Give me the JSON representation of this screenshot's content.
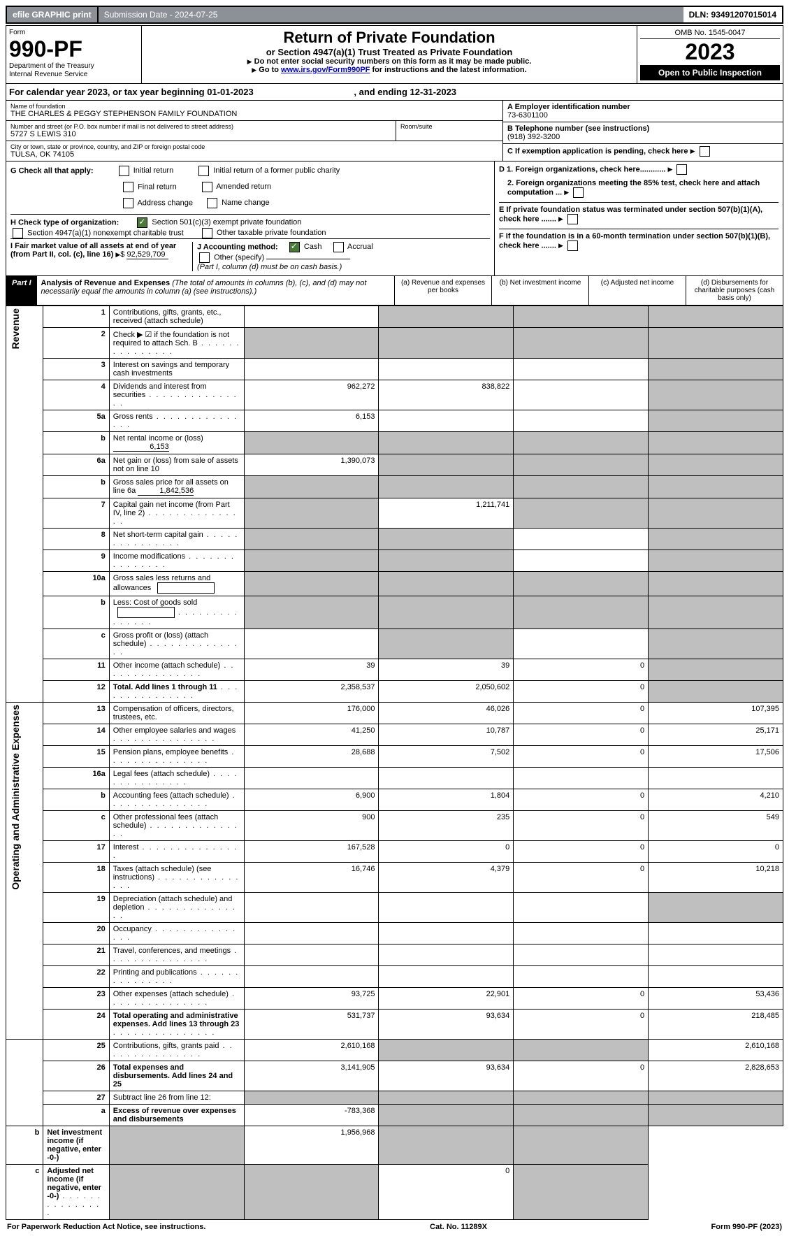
{
  "topbar": {
    "efile": "efile GRAPHIC print",
    "submission_label": "Submission Date - 2024-07-25",
    "dln_label": "DLN: 93491207015014"
  },
  "header": {
    "form_label": "Form",
    "form_number": "990-PF",
    "dept1": "Department of the Treasury",
    "dept2": "Internal Revenue Service",
    "title": "Return of Private Foundation",
    "subtitle": "or Section 4947(a)(1) Trust Treated as Private Foundation",
    "instr1": "Do not enter social security numbers on this form as it may be made public.",
    "instr2_prefix": "Go to ",
    "instr2_link": "www.irs.gov/Form990PF",
    "instr2_suffix": " for instructions and the latest information.",
    "omb": "OMB No. 1545-0047",
    "year": "2023",
    "open_pub": "Open to Public Inspection"
  },
  "cal_year": {
    "prefix": "For calendar year 2023, or tax year beginning ",
    "begin": "01-01-2023",
    "mid": " , and ending ",
    "end": "12-31-2023"
  },
  "foundation": {
    "name_label": "Name of foundation",
    "name": "THE CHARLES & PEGGY STEPHENSON FAMILY FOUNDATION",
    "addr_label": "Number and street (or P.O. box number if mail is not delivered to street address)",
    "addr": "5727 S LEWIS 310",
    "room_label": "Room/suite",
    "city_label": "City or town, state or province, country, and ZIP or foreign postal code",
    "city": "TULSA, OK  74105",
    "ein_label": "A Employer identification number",
    "ein": "73-6301100",
    "phone_label": "B Telephone number (see instructions)",
    "phone": "(918) 392-3200",
    "c_label": "C If exemption application is pending, check here",
    "d1_label": "D 1. Foreign organizations, check here............",
    "d2_label": "2. Foreign organizations meeting the 85% test, check here and attach computation ...",
    "e_label": "E  If private foundation status was terminated under section 507(b)(1)(A), check here .......",
    "f_label": "F  If the foundation is in a 60-month termination under section 507(b)(1)(B), check here ......."
  },
  "g_block": {
    "g_label": "G Check all that apply:",
    "initial_return": "Initial return",
    "final_return": "Final return",
    "address_change": "Address change",
    "initial_former": "Initial return of a former public charity",
    "amended": "Amended return",
    "name_change": "Name change",
    "h_label": "H Check type of organization:",
    "h_501c3": "Section 501(c)(3) exempt private foundation",
    "h_4947": "Section 4947(a)(1) nonexempt charitable trust",
    "h_other_tax": "Other taxable private foundation",
    "i_label": "I Fair market value of all assets at end of year (from Part II, col. (c), line 16)",
    "i_value": "92,529,709",
    "j_label": "J Accounting method:",
    "j_cash": "Cash",
    "j_accrual": "Accrual",
    "j_other": "Other (specify)",
    "j_note": "(Part I, column (d) must be on cash basis.)"
  },
  "part1": {
    "label": "Part I",
    "title": "Analysis of Revenue and Expenses",
    "note": "(The total of amounts in columns (b), (c), and (d) may not necessarily equal the amounts in column (a) (see instructions).)",
    "col_a": "(a)  Revenue and expenses per books",
    "col_b": "(b)  Net investment income",
    "col_c": "(c)  Adjusted net income",
    "col_d": "(d)  Disbursements for charitable purposes (cash basis only)"
  },
  "side_labels": {
    "revenue": "Revenue",
    "expenses": "Operating and Administrative Expenses"
  },
  "rows": [
    {
      "n": "1",
      "desc": "Contributions, gifts, grants, etc., received (attach schedule)",
      "a": "",
      "b": "grey",
      "c": "grey",
      "d": "grey"
    },
    {
      "n": "2",
      "desc": "Check ▶ ☑ if the foundation is not required to attach Sch. B",
      "dots": true,
      "a": "grey",
      "b": "grey",
      "c": "grey",
      "d": "grey"
    },
    {
      "n": "3",
      "desc": "Interest on savings and temporary cash investments",
      "a": "",
      "b": "",
      "c": "",
      "d": "grey"
    },
    {
      "n": "4",
      "desc": "Dividends and interest from securities",
      "dots": true,
      "a": "962,272",
      "b": "838,822",
      "c": "",
      "d": "grey"
    },
    {
      "n": "5a",
      "desc": "Gross rents",
      "dots": true,
      "a": "6,153",
      "b": "",
      "c": "",
      "d": "grey"
    },
    {
      "n": "b",
      "desc": "Net rental income or (loss)",
      "inline_val": "6,153",
      "a": "grey",
      "b": "grey",
      "c": "grey",
      "d": "grey"
    },
    {
      "n": "6a",
      "desc": "Net gain or (loss) from sale of assets not on line 10",
      "a": "1,390,073",
      "b": "grey",
      "c": "grey",
      "d": "grey"
    },
    {
      "n": "b",
      "desc": "Gross sales price for all assets on line 6a",
      "inline_val": "1,842,536",
      "a": "grey",
      "b": "grey",
      "c": "grey",
      "d": "grey"
    },
    {
      "n": "7",
      "desc": "Capital gain net income (from Part IV, line 2)",
      "dots": true,
      "a": "grey",
      "b": "1,211,741",
      "c": "grey",
      "d": "grey"
    },
    {
      "n": "8",
      "desc": "Net short-term capital gain",
      "dots": true,
      "a": "grey",
      "b": "grey",
      "c": "",
      "d": "grey"
    },
    {
      "n": "9",
      "desc": "Income modifications",
      "dots": true,
      "a": "grey",
      "b": "grey",
      "c": "",
      "d": "grey"
    },
    {
      "n": "10a",
      "desc": "Gross sales less returns and allowances",
      "box": true,
      "a": "grey",
      "b": "grey",
      "c": "grey",
      "d": "grey"
    },
    {
      "n": "b",
      "desc": "Less: Cost of goods sold",
      "dots": true,
      "box": true,
      "a": "grey",
      "b": "grey",
      "c": "grey",
      "d": "grey"
    },
    {
      "n": "c",
      "desc": "Gross profit or (loss) (attach schedule)",
      "dots": true,
      "a": "",
      "b": "grey",
      "c": "",
      "d": "grey"
    },
    {
      "n": "11",
      "desc": "Other income (attach schedule)",
      "dots": true,
      "a": "39",
      "b": "39",
      "c": "0",
      "d": "grey"
    },
    {
      "n": "12",
      "desc": "Total. Add lines 1 through 11",
      "dots": true,
      "bold": true,
      "a": "2,358,537",
      "b": "2,050,602",
      "c": "0",
      "d": "grey"
    },
    {
      "n": "13",
      "desc": "Compensation of officers, directors, trustees, etc.",
      "a": "176,000",
      "b": "46,026",
      "c": "0",
      "d": "107,395"
    },
    {
      "n": "14",
      "desc": "Other employee salaries and wages",
      "dots": true,
      "a": "41,250",
      "b": "10,787",
      "c": "0",
      "d": "25,171"
    },
    {
      "n": "15",
      "desc": "Pension plans, employee benefits",
      "dots": true,
      "a": "28,688",
      "b": "7,502",
      "c": "0",
      "d": "17,506"
    },
    {
      "n": "16a",
      "desc": "Legal fees (attach schedule)",
      "dots": true,
      "a": "",
      "b": "",
      "c": "",
      "d": ""
    },
    {
      "n": "b",
      "desc": "Accounting fees (attach schedule)",
      "dots": true,
      "a": "6,900",
      "b": "1,804",
      "c": "0",
      "d": "4,210"
    },
    {
      "n": "c",
      "desc": "Other professional fees (attach schedule)",
      "dots": true,
      "a": "900",
      "b": "235",
      "c": "0",
      "d": "549"
    },
    {
      "n": "17",
      "desc": "Interest",
      "dots": true,
      "a": "167,528",
      "b": "0",
      "c": "0",
      "d": "0"
    },
    {
      "n": "18",
      "desc": "Taxes (attach schedule) (see instructions)",
      "dots": true,
      "a": "16,746",
      "b": "4,379",
      "c": "0",
      "d": "10,218"
    },
    {
      "n": "19",
      "desc": "Depreciation (attach schedule) and depletion",
      "dots": true,
      "a": "",
      "b": "",
      "c": "",
      "d": "grey"
    },
    {
      "n": "20",
      "desc": "Occupancy",
      "dots": true,
      "a": "",
      "b": "",
      "c": "",
      "d": ""
    },
    {
      "n": "21",
      "desc": "Travel, conferences, and meetings",
      "dots": true,
      "a": "",
      "b": "",
      "c": "",
      "d": ""
    },
    {
      "n": "22",
      "desc": "Printing and publications",
      "dots": true,
      "a": "",
      "b": "",
      "c": "",
      "d": ""
    },
    {
      "n": "23",
      "desc": "Other expenses (attach schedule)",
      "dots": true,
      "a": "93,725",
      "b": "22,901",
      "c": "0",
      "d": "53,436"
    },
    {
      "n": "24",
      "desc": "Total operating and administrative expenses. Add lines 13 through 23",
      "dots": true,
      "bold": true,
      "a": "531,737",
      "b": "93,634",
      "c": "0",
      "d": "218,485"
    },
    {
      "n": "25",
      "desc": "Contributions, gifts, grants paid",
      "dots": true,
      "a": "2,610,168",
      "b": "grey",
      "c": "grey",
      "d": "2,610,168"
    },
    {
      "n": "26",
      "desc": "Total expenses and disbursements. Add lines 24 and 25",
      "bold": true,
      "a": "3,141,905",
      "b": "93,634",
      "c": "0",
      "d": "2,828,653"
    },
    {
      "n": "27",
      "desc": "Subtract line 26 from line 12:",
      "a": "grey",
      "b": "grey",
      "c": "grey",
      "d": "grey"
    },
    {
      "n": "a",
      "desc": "Excess of revenue over expenses and disbursements",
      "bold": true,
      "a": "-783,368",
      "b": "grey",
      "c": "grey",
      "d": "grey"
    },
    {
      "n": "b",
      "desc": "Net investment income (if negative, enter -0-)",
      "bold": true,
      "a": "grey",
      "b": "1,956,968",
      "c": "grey",
      "d": "grey"
    },
    {
      "n": "c",
      "desc": "Adjusted net income (if negative, enter -0-)",
      "dots": true,
      "bold": true,
      "a": "grey",
      "b": "grey",
      "c": "0",
      "d": "grey"
    }
  ],
  "footer": {
    "left": "For Paperwork Reduction Act Notice, see instructions.",
    "mid": "Cat. No. 11289X",
    "right": "Form 990-PF (2023)"
  }
}
